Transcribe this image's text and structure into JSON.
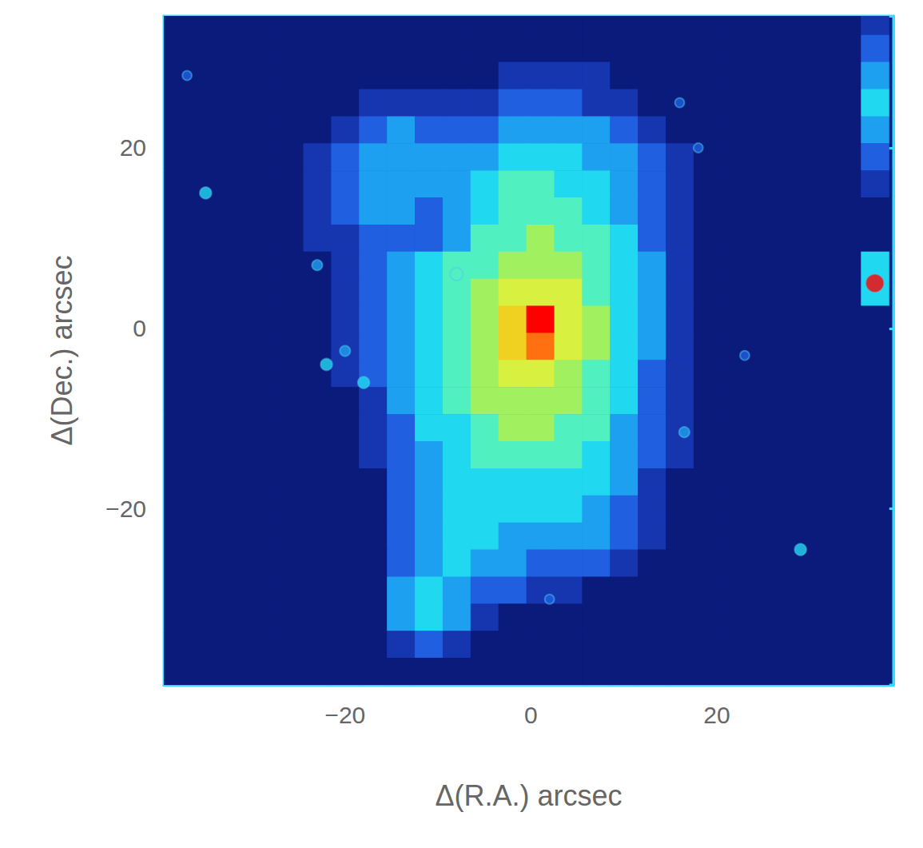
{
  "chart_data": {
    "type": "image",
    "x_label": "Δ(R.A.) arcsec",
    "y_label": "Δ(Dec.) arcsec",
    "xlim": [
      -39.5,
      39
    ],
    "ylim": [
      -39.5,
      34.6
    ],
    "xticks": [
      {
        "value": -20,
        "label": "−20"
      },
      0,
      20
    ],
    "yticks": [
      {
        "value": -20,
        "label": "−20"
      },
      0,
      20
    ],
    "cell_size": 3,
    "value_range": [
      0,
      10
    ],
    "x": [
      -38,
      -35,
      -32,
      -29,
      -26,
      -23,
      -20,
      -17,
      -14,
      -11,
      -8,
      -5,
      -2,
      1,
      4,
      7,
      10,
      13,
      16,
      19,
      22,
      25,
      28,
      31,
      34,
      37
    ],
    "y": [
      34,
      31,
      28,
      25,
      22,
      19,
      16,
      13,
      10,
      7,
      4,
      1,
      -2,
      -5,
      -8,
      -11,
      -14,
      -17,
      -20,
      -23,
      -26,
      -29,
      -32,
      -35,
      -38
    ],
    "cells": [
      [
        0,
        0,
        0,
        0,
        0,
        0,
        0,
        0,
        0,
        0,
        0,
        0,
        0,
        0,
        0,
        0,
        0,
        0,
        0,
        0,
        0,
        0,
        0,
        0,
        0,
        1
      ],
      [
        0,
        0,
        0,
        0,
        0,
        0,
        0,
        0,
        0,
        0,
        0,
        0,
        0,
        0,
        0,
        0,
        0,
        0,
        0,
        0,
        0,
        0,
        0,
        0,
        0,
        2
      ],
      [
        0,
        0,
        0,
        0,
        0,
        0,
        0,
        0,
        0,
        0,
        0,
        0,
        1,
        1,
        1,
        1,
        0,
        0,
        0,
        0,
        0,
        0,
        0,
        0,
        0,
        3
      ],
      [
        0,
        0,
        0,
        0,
        0,
        0,
        0,
        1,
        1,
        1,
        1,
        1,
        2,
        2,
        2,
        1,
        1,
        0,
        0,
        0,
        0,
        0,
        0,
        0,
        0,
        4
      ],
      [
        0,
        0,
        0,
        0,
        0,
        0,
        1,
        2,
        3,
        2,
        2,
        2,
        3,
        3,
        3,
        3,
        2,
        1,
        0,
        0,
        0,
        0,
        0,
        0,
        0,
        3
      ],
      [
        0,
        0,
        0,
        0,
        0,
        1,
        2,
        3,
        3,
        3,
        3,
        3,
        4,
        4,
        4,
        3,
        3,
        2,
        1,
        0,
        0,
        0,
        0,
        0,
        0,
        2
      ],
      [
        0,
        0,
        0,
        0,
        0,
        1,
        2,
        3,
        3,
        3,
        3,
        4,
        5,
        5,
        4,
        4,
        3,
        2,
        1,
        0,
        0,
        0,
        0,
        0,
        0,
        1
      ],
      [
        0,
        0,
        0,
        0,
        0,
        1,
        2,
        3,
        3,
        2,
        3,
        4,
        5,
        5,
        5,
        4,
        3,
        2,
        1,
        0,
        0,
        0,
        0,
        0,
        0,
        0
      ],
      [
        0,
        0,
        0,
        0,
        0,
        1,
        1,
        2,
        2,
        2,
        3,
        5,
        5,
        6,
        5,
        5,
        4,
        2,
        1,
        0,
        0,
        0,
        0,
        0,
        0,
        0
      ],
      [
        0,
        0,
        0,
        0,
        0,
        0,
        1,
        2,
        3,
        4,
        5,
        5,
        6,
        6,
        6,
        5,
        4,
        3,
        1,
        0,
        0,
        0,
        0,
        0,
        0,
        4
      ],
      [
        0,
        0,
        0,
        0,
        0,
        0,
        1,
        2,
        3,
        4,
        5,
        6,
        7,
        7,
        7,
        5,
        4,
        3,
        1,
        0,
        0,
        0,
        0,
        0,
        0,
        4
      ],
      [
        0,
        0,
        0,
        0,
        0,
        0,
        1,
        2,
        3,
        4,
        5,
        6,
        8,
        10,
        7,
        6,
        4,
        3,
        1,
        0,
        0,
        0,
        0,
        0,
        0,
        0
      ],
      [
        0,
        0,
        0,
        0,
        0,
        0,
        1,
        2,
        3,
        4,
        5,
        6,
        8,
        9,
        7,
        6,
        4,
        3,
        1,
        0,
        0,
        0,
        0,
        0,
        0,
        0
      ],
      [
        0,
        0,
        0,
        0,
        0,
        0,
        1,
        2,
        3,
        4,
        5,
        6,
        7,
        7,
        6,
        5,
        4,
        2,
        1,
        0,
        0,
        0,
        0,
        0,
        0,
        0
      ],
      [
        0,
        0,
        0,
        0,
        0,
        0,
        0,
        1,
        3,
        4,
        5,
        6,
        6,
        6,
        6,
        5,
        4,
        2,
        1,
        0,
        0,
        0,
        0,
        0,
        0,
        0
      ],
      [
        0,
        0,
        0,
        0,
        0,
        0,
        0,
        1,
        2,
        4,
        4,
        5,
        6,
        6,
        5,
        5,
        3,
        2,
        1,
        0,
        0,
        0,
        0,
        0,
        0,
        0
      ],
      [
        0,
        0,
        0,
        0,
        0,
        0,
        0,
        1,
        2,
        3,
        4,
        5,
        5,
        5,
        5,
        4,
        3,
        2,
        1,
        0,
        0,
        0,
        0,
        0,
        0,
        0
      ],
      [
        0,
        0,
        0,
        0,
        0,
        0,
        0,
        0,
        2,
        3,
        4,
        4,
        4,
        4,
        4,
        4,
        3,
        1,
        0,
        0,
        0,
        0,
        0,
        0,
        0,
        0
      ],
      [
        0,
        0,
        0,
        0,
        0,
        0,
        0,
        0,
        2,
        3,
        4,
        4,
        4,
        4,
        4,
        3,
        2,
        1,
        0,
        0,
        0,
        0,
        0,
        0,
        0,
        0
      ],
      [
        0,
        0,
        0,
        0,
        0,
        0,
        0,
        0,
        2,
        3,
        4,
        4,
        3,
        3,
        3,
        3,
        2,
        1,
        0,
        0,
        0,
        0,
        0,
        0,
        0,
        0
      ],
      [
        0,
        0,
        0,
        0,
        0,
        0,
        0,
        0,
        2,
        3,
        4,
        3,
        3,
        2,
        2,
        2,
        1,
        0,
        0,
        0,
        0,
        0,
        0,
        0,
        0,
        0
      ],
      [
        0,
        0,
        0,
        0,
        0,
        0,
        0,
        0,
        3,
        4,
        3,
        2,
        2,
        1,
        1,
        0,
        0,
        0,
        0,
        0,
        0,
        0,
        0,
        0,
        0,
        0
      ],
      [
        0,
        0,
        0,
        0,
        0,
        0,
        0,
        0,
        3,
        4,
        3,
        1,
        0,
        0,
        0,
        0,
        0,
        0,
        0,
        0,
        0,
        0,
        0,
        0,
        0,
        0
      ],
      [
        0,
        0,
        0,
        0,
        0,
        0,
        0,
        0,
        1,
        2,
        1,
        0,
        0,
        0,
        0,
        0,
        0,
        0,
        0,
        0,
        0,
        0,
        0,
        0,
        0,
        0
      ],
      [
        0,
        0,
        0,
        0,
        0,
        0,
        0,
        0,
        0,
        0,
        0,
        0,
        0,
        0,
        0,
        0,
        0,
        0,
        0,
        0,
        0,
        0,
        0,
        0,
        0,
        0
      ]
    ],
    "stars": {
      "x": [
        -35,
        -23,
        -22,
        -20,
        -18,
        37,
        29,
        16.5,
        -37,
        2,
        18,
        16,
        23,
        -8
      ],
      "y": [
        15,
        7,
        -4,
        -2.5,
        -6,
        5,
        -24.5,
        -11.5,
        28,
        -30,
        20,
        25,
        -3,
        6
      ],
      "values": [
        4,
        3,
        4,
        3,
        4,
        10,
        4,
        3,
        2,
        2,
        2,
        2,
        2,
        5
      ]
    }
  }
}
